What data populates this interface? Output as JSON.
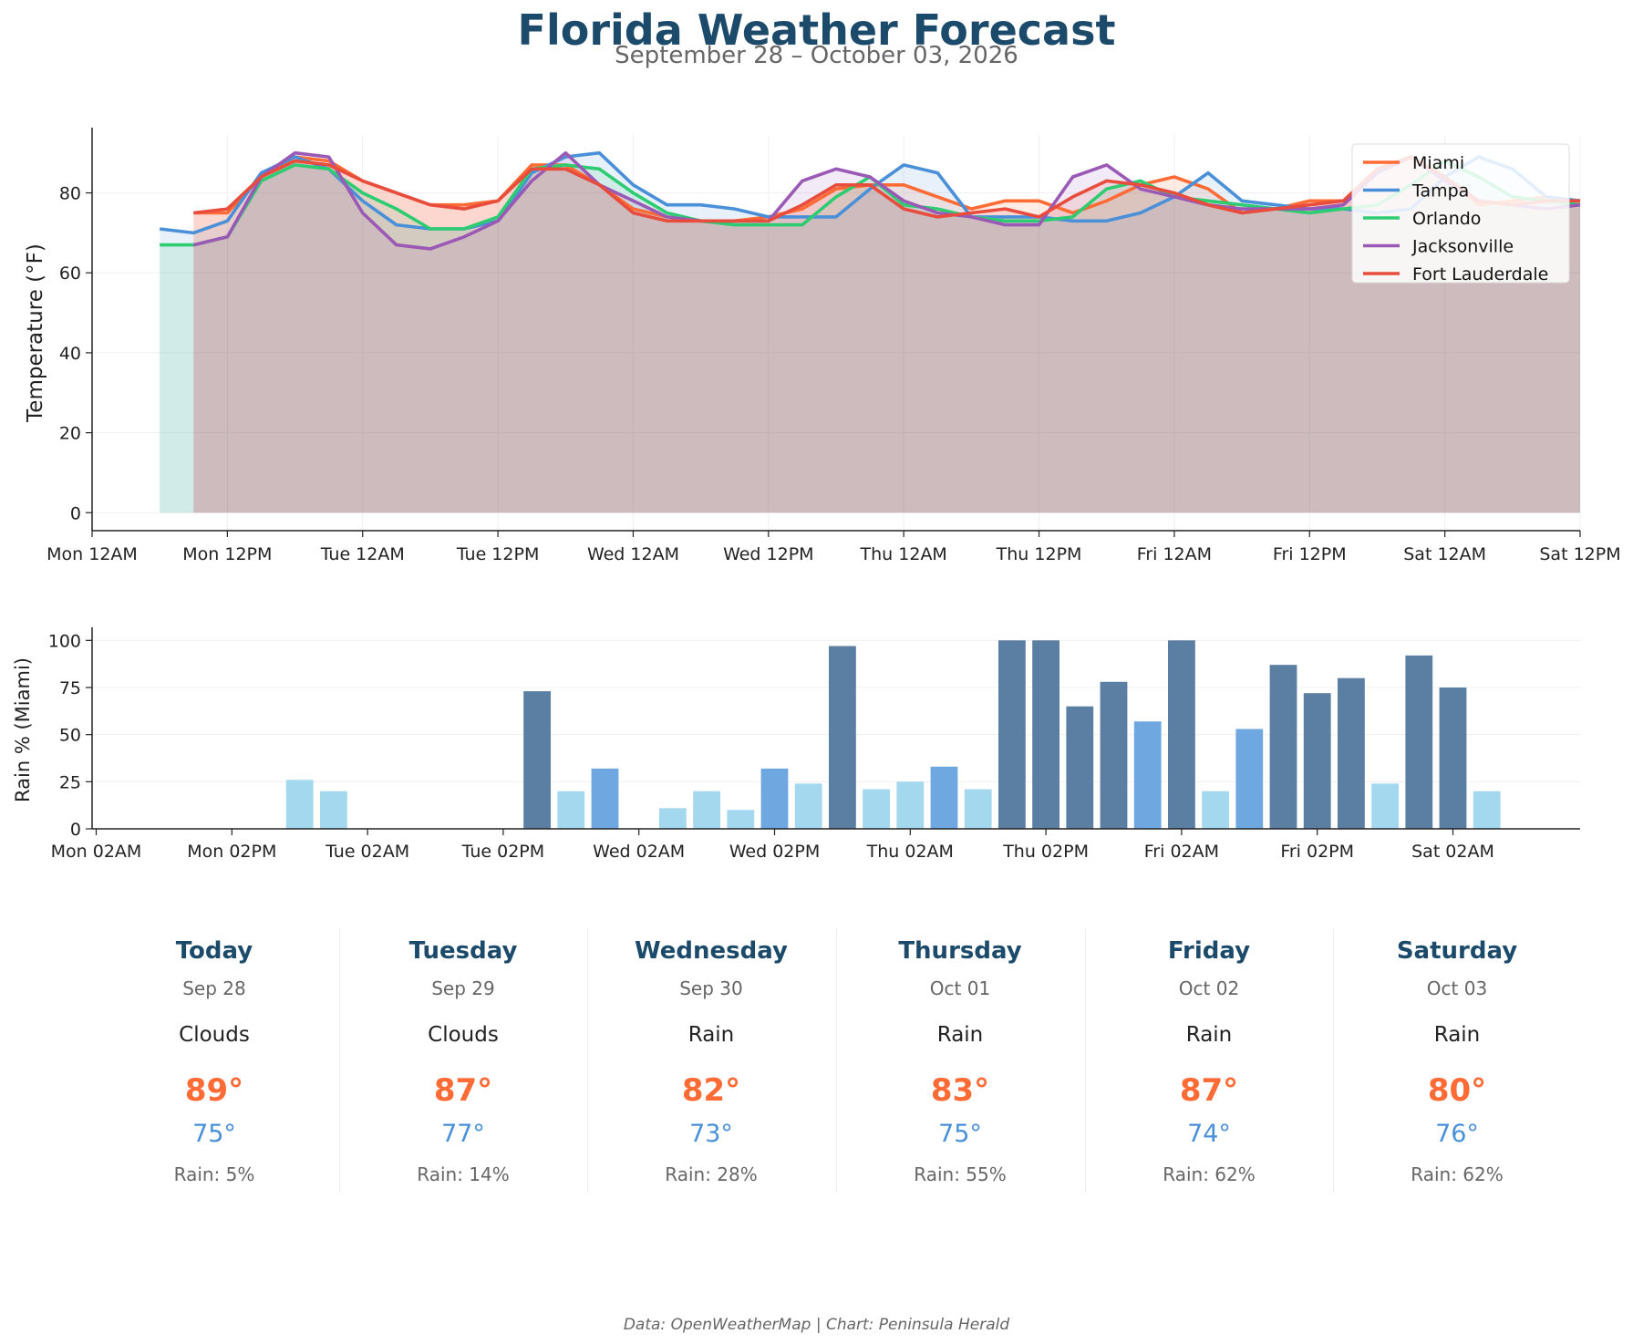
{
  "title": "Florida Weather Forecast",
  "subtitle": "September 28 – October 03, 2026",
  "footer": "Data: OpenWeatherMap | Chart: Peninsula Herald",
  "colors": {
    "Miami": "#ff6b35",
    "Tampa": "#4a90d9",
    "Orlando": "#2ecc71",
    "Jacksonville": "#9b59b6",
    "Fort Lauderdale": "#e74c3c",
    "rain_heavy": "#5a7fa3",
    "rain_medium": "#6fa8e0",
    "rain_light": "#a3d8ef",
    "title": "#1b4a6b",
    "high": "#ff6b35",
    "low": "#4a90d9"
  },
  "chart_data": [
    {
      "type": "line",
      "ylabel": "Temperature (°F)",
      "xlabel": "",
      "ylim": [
        -4.5,
        94.5
      ],
      "xlim_hours": [
        0,
        132
      ],
      "yticks": [
        0,
        20,
        40,
        60,
        80
      ],
      "xtick_labels": [
        "Mon 12AM",
        "Mon 12PM",
        "Tue 12AM",
        "Tue 12PM",
        "Wed 12AM",
        "Wed 12PM",
        "Thu 12AM",
        "Thu 12PM",
        "Fri 12AM",
        "Fri 12PM",
        "Sat 12AM",
        "Sat 12PM"
      ],
      "legend_position": "top-right",
      "grid": true,
      "series": [
        {
          "name": "Miami",
          "start_hour": 9,
          "values": [
            75,
            75,
            84,
            89,
            88,
            83,
            80,
            77,
            77,
            78,
            87,
            87,
            82,
            76,
            74,
            73,
            73,
            74,
            76,
            81,
            82,
            82,
            79,
            76,
            78,
            78,
            75,
            78,
            82,
            84,
            81,
            75,
            76,
            78,
            78,
            86,
            89,
            84,
            77,
            78,
            79,
            78
          ]
        },
        {
          "name": "Tampa",
          "start_hour": 6,
          "values": [
            71,
            70,
            73,
            85,
            89,
            86,
            78,
            72,
            71,
            71,
            73,
            85,
            89,
            90,
            82,
            77,
            77,
            76,
            74,
            74,
            74,
            81,
            87,
            85,
            74,
            74,
            74,
            73,
            73,
            75,
            79,
            85,
            78,
            77,
            76,
            76,
            75,
            76,
            84,
            89,
            86,
            79,
            78
          ]
        },
        {
          "name": "Orlando",
          "start_hour": 6,
          "values": [
            67,
            67,
            69,
            83,
            87,
            86,
            80,
            76,
            71,
            71,
            74,
            86,
            87,
            86,
            80,
            75,
            73,
            72,
            72,
            72,
            79,
            84,
            77,
            76,
            74,
            73,
            73,
            74,
            81,
            83,
            79,
            78,
            77,
            76,
            75,
            76,
            77,
            82,
            88,
            84,
            79,
            78,
            77
          ]
        },
        {
          "name": "Jacksonville",
          "start_hour": 9,
          "values": [
            67,
            69,
            84,
            90,
            89,
            75,
            67,
            66,
            69,
            73,
            83,
            90,
            82,
            78,
            74,
            73,
            73,
            73,
            83,
            86,
            84,
            78,
            75,
            74,
            72,
            72,
            84,
            87,
            81,
            79,
            77,
            76,
            76,
            76,
            77,
            85,
            89,
            83,
            78,
            77,
            76,
            77
          ]
        },
        {
          "name": "Fort Lauderdale",
          "start_hour": 9,
          "values": [
            75,
            76,
            84,
            88,
            87,
            83,
            80,
            77,
            76,
            78,
            86,
            86,
            82,
            75,
            73,
            73,
            73,
            73,
            77,
            82,
            82,
            76,
            74,
            75,
            76,
            74,
            79,
            83,
            82,
            80,
            77,
            75,
            76,
            77,
            78,
            86,
            89,
            84,
            78,
            77,
            78,
            78
          ]
        }
      ]
    },
    {
      "type": "bar",
      "ylabel": "Rain % (Miami)",
      "xlabel": "",
      "ylim": [
        0,
        105
      ],
      "yticks": [
        0,
        25,
        50,
        75,
        100
      ],
      "xtick_labels": [
        "Mon 02AM",
        "Mon 02PM",
        "Tue 02AM",
        "Tue 02PM",
        "Wed 02AM",
        "Wed 02PM",
        "Thu 02AM",
        "Thu 02PM",
        "Fri 02AM",
        "Fri 02PM",
        "Sat 02AM"
      ],
      "grid": true,
      "values": [
        0,
        0,
        0,
        0,
        0,
        0,
        26,
        20,
        0,
        0,
        0,
        0,
        0,
        73,
        20,
        32,
        0,
        11,
        20,
        10,
        32,
        24,
        97,
        21,
        25,
        33,
        21,
        100,
        100,
        65,
        78,
        57,
        100,
        20,
        53,
        87,
        72,
        80,
        24,
        92,
        75,
        20
      ]
    }
  ],
  "forecast": [
    {
      "day": "Today",
      "date": "Sep 28",
      "condition": "Clouds",
      "high": "89°",
      "low": "75°",
      "rain": "Rain: 5%"
    },
    {
      "day": "Tuesday",
      "date": "Sep 29",
      "condition": "Clouds",
      "high": "87°",
      "low": "77°",
      "rain": "Rain: 14%"
    },
    {
      "day": "Wednesday",
      "date": "Sep 30",
      "condition": "Rain",
      "high": "82°",
      "low": "73°",
      "rain": "Rain: 28%"
    },
    {
      "day": "Thursday",
      "date": "Oct 01",
      "condition": "Rain",
      "high": "83°",
      "low": "75°",
      "rain": "Rain: 55%"
    },
    {
      "day": "Friday",
      "date": "Oct 02",
      "condition": "Rain",
      "high": "87°",
      "low": "74°",
      "rain": "Rain: 62%"
    },
    {
      "day": "Saturday",
      "date": "Oct 03",
      "condition": "Rain",
      "high": "80°",
      "low": "76°",
      "rain": "Rain: 62%"
    }
  ]
}
